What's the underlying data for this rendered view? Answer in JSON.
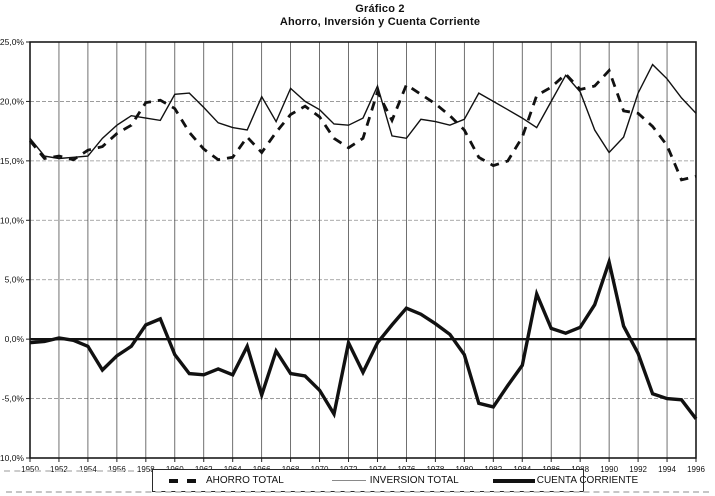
{
  "title": {
    "line1": "Gráfico 2",
    "line2": "Ahorro, Inversión y Cuenta Corriente"
  },
  "legend": {
    "items": [
      {
        "label": "AHORRO TOTAL",
        "marker": "dashed-line"
      },
      {
        "label": "INVERSION TOTAL",
        "marker": "thin-line"
      },
      {
        "label": "CUENTA CORRIENTE",
        "marker": "thick-line"
      }
    ]
  },
  "chart_data": {
    "type": "line",
    "title": "Gráfico 2 — Ahorro, Inversión y Cuenta Corriente",
    "x": [
      1950,
      1951,
      1952,
      1953,
      1954,
      1955,
      1956,
      1957,
      1958,
      1959,
      1960,
      1961,
      1962,
      1963,
      1964,
      1965,
      1966,
      1967,
      1968,
      1969,
      1970,
      1971,
      1972,
      1973,
      1974,
      1975,
      1976,
      1977,
      1978,
      1979,
      1980,
      1981,
      1982,
      1983,
      1984,
      1985,
      1986,
      1987,
      1988,
      1989,
      1990,
      1991,
      1992,
      1993,
      1994,
      1995,
      1996
    ],
    "series": [
      {
        "name": "AHORRO TOTAL",
        "style": "dashed",
        "width": 2.8,
        "values": [
          16.7,
          15.2,
          15.4,
          15.1,
          15.9,
          16.2,
          17.3,
          18.0,
          19.9,
          20.1,
          19.4,
          17.4,
          16.0,
          15.1,
          15.3,
          17.0,
          15.7,
          17.4,
          18.9,
          19.6,
          18.7,
          16.9,
          16.1,
          16.9,
          20.8,
          18.4,
          21.4,
          20.6,
          19.8,
          18.8,
          17.6,
          15.3,
          14.6,
          15.0,
          17.0,
          20.5,
          21.2,
          22.3,
          21.0,
          21.3,
          22.6,
          19.2,
          19.0,
          17.9,
          16.3,
          13.4,
          13.7
        ]
      },
      {
        "name": "INVERSION TOTAL",
        "style": "solid-thin",
        "width": 1.4,
        "values": [
          16.9,
          15.4,
          15.2,
          15.3,
          15.4,
          16.9,
          18.0,
          18.8,
          18.6,
          18.4,
          20.6,
          20.7,
          19.5,
          18.2,
          17.8,
          17.6,
          20.4,
          18.3,
          21.1,
          20.0,
          19.3,
          18.1,
          18.0,
          18.6,
          21.3,
          17.1,
          16.9,
          18.5,
          18.3,
          18.0,
          18.5,
          20.7,
          20.0,
          19.3,
          18.6,
          17.8,
          20.0,
          22.2,
          20.8,
          17.6,
          15.7,
          17.0,
          20.7,
          23.1,
          21.9,
          20.3,
          19.0
        ]
      },
      {
        "name": "CUENTA CORRIENTE",
        "style": "solid-thick",
        "width": 3.4,
        "values": [
          -0.3,
          -0.2,
          0.1,
          -0.1,
          -0.6,
          -2.6,
          -1.4,
          -0.6,
          1.2,
          1.7,
          -1.3,
          -2.9,
          -3.0,
          -2.5,
          -3.0,
          -0.6,
          -4.7,
          -1.0,
          -2.9,
          -3.1,
          -4.3,
          -6.3,
          -0.3,
          -2.8,
          -0.3,
          1.2,
          2.6,
          2.1,
          1.3,
          0.4,
          -1.3,
          -5.4,
          -5.7,
          -3.9,
          -2.2,
          3.8,
          0.9,
          0.5,
          1.0,
          2.9,
          6.5,
          1.1,
          -1.2,
          -4.6,
          -5.0,
          -5.1,
          -6.7
        ]
      }
    ],
    "xlabel": "",
    "ylabel": "",
    "ylim": [
      -10,
      25
    ],
    "ytick_step": 5,
    "ytick_labels": [
      "25,0%",
      "20,0%",
      "15,0%",
      "10,0%",
      "5,0%",
      "0,0%",
      "-5,0%",
      "-10,0%"
    ],
    "xtick_labels": [
      "1950",
      "1952",
      "1954",
      "1956",
      "1958",
      "1960",
      "1962",
      "1964",
      "1966",
      "1968",
      "1970",
      "1972",
      "1974",
      "1976",
      "1978",
      "1980",
      "1982",
      "1984",
      "1986",
      "1988",
      "1990",
      "1992",
      "1994",
      "1996"
    ],
    "grid": true,
    "zero_line": true,
    "legend_position": "bottom",
    "line_color": "#111111",
    "background_color": "#ffffff"
  }
}
